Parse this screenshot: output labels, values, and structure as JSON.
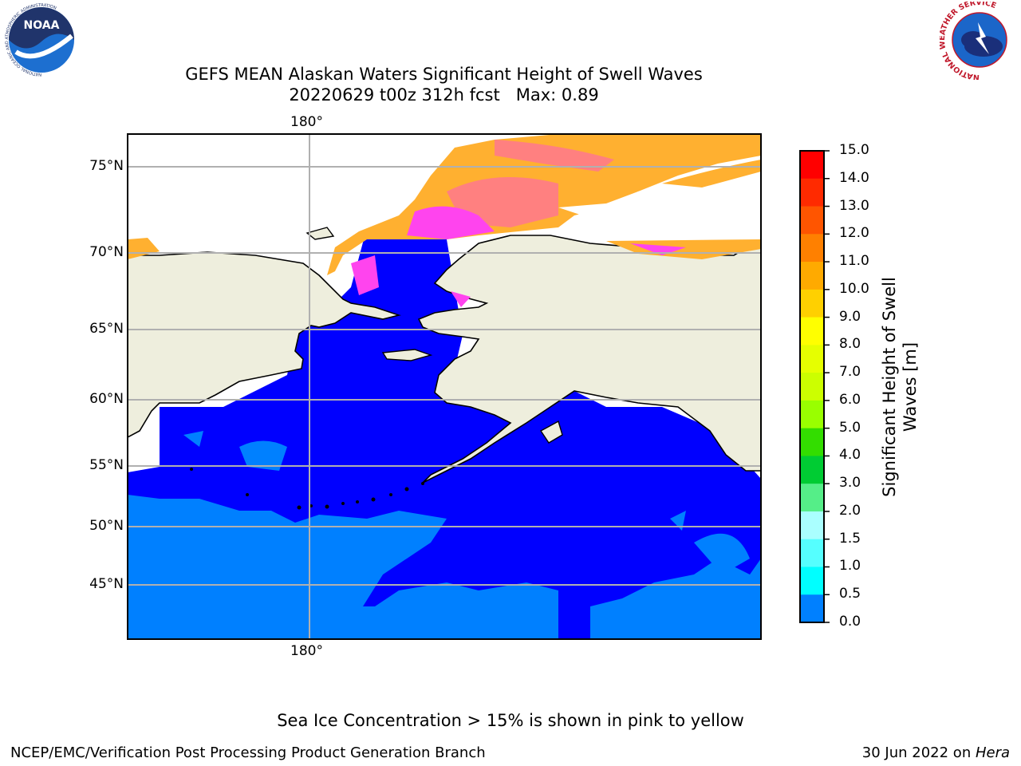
{
  "title": {
    "line1": "GEFS MEAN Alaskan Waters Significant Height of Swell Waves",
    "line2_run": "20220629 t00z 312h fcst",
    "line2_max": "Max: 0.89"
  },
  "map": {
    "lon_label_top": "180°",
    "lon_label_bottom": "180°",
    "lat_labels": [
      "75°N",
      "70°N",
      "65°N",
      "60°N",
      "55°N",
      "50°N",
      "45°N"
    ],
    "land_color": "#eeeedd",
    "ocean_low_color": "#0000ff",
    "ocean_mid_color": "#0080ff",
    "ice_pink": "#ff44ee",
    "ice_salmon": "#ff8080",
    "ice_orange": "#ffb030"
  },
  "colorbar": {
    "label_line1": "Significant Height of Swell",
    "label_line2": "Waves [m]",
    "ticks": [
      "15.0",
      "14.0",
      "13.0",
      "12.0",
      "11.0",
      "10.0",
      "9.0",
      "8.0",
      "7.0",
      "6.0",
      "5.0",
      "4.0",
      "3.0",
      "2.0",
      "1.5",
      "1.0",
      "0.5",
      "0.0"
    ],
    "colors": [
      "#ff0000",
      "#ff2a00",
      "#ff5500",
      "#ff8000",
      "#ffaa00",
      "#ffd000",
      "#ffff00",
      "#e6ff00",
      "#ccff00",
      "#99ff00",
      "#33dd00",
      "#00cc33",
      "#55ee88",
      "#aaffff",
      "#55ffff",
      "#00ffff",
      "#0080ff",
      "#0000ff"
    ]
  },
  "footer": {
    "note": "Sea Ice Concentration > 15% is shown in pink to yellow",
    "left": "NCEP/EMC/Verification Post Processing Product Generation Branch",
    "right_date": "30 Jun 2022 on ",
    "right_host": "Hera"
  },
  "logos": {
    "noaa_text": "NOAA",
    "noaa_ring": "NATIONAL OCEANIC AND ATMOSPHERIC ADMINISTRATION",
    "noaa_bottom": "U.S. DEPARTMENT OF COMMERCE",
    "nws_ring": "NATIONAL WEATHER SERVICE"
  }
}
